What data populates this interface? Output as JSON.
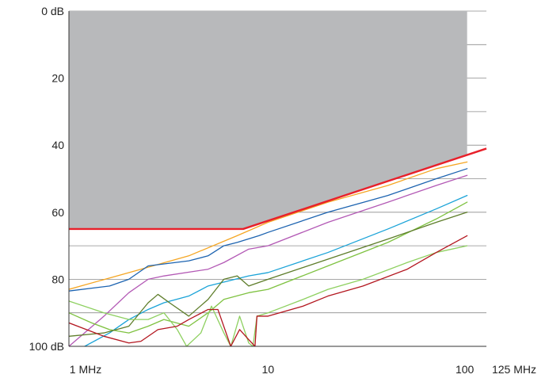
{
  "chart_data": {
    "type": "line",
    "title": "",
    "xlabel": "",
    "ylabel": "",
    "x_scale": "log",
    "xlim": [
      1,
      125
    ],
    "ylim": [
      0,
      100
    ],
    "y_inverted": true,
    "grid": "horizontal",
    "x_tick_labels": [
      {
        "value": 1,
        "label": "1 MHz"
      },
      {
        "value": 10,
        "label": "10"
      },
      {
        "value": 100,
        "label": "100"
      },
      {
        "value": 125,
        "label": "125 MHz"
      }
    ],
    "y_tick_labels": [
      {
        "value": 0,
        "label": "0 dB"
      },
      {
        "value": 20,
        "label": "20"
      },
      {
        "value": 40,
        "label": "40"
      },
      {
        "value": 60,
        "label": "60"
      },
      {
        "value": 80,
        "label": "80"
      },
      {
        "value": 100,
        "label": "100 dB"
      }
    ],
    "y_gridlines": [
      0,
      10,
      20,
      30,
      40,
      50,
      60,
      70,
      80,
      90,
      100
    ],
    "limit_region": {
      "fill_color": "#b8b9bb",
      "x_range": [
        1,
        100
      ],
      "bottom_boundary": [
        [
          1,
          65
        ],
        [
          7.5,
          65
        ],
        [
          100,
          43
        ]
      ]
    },
    "limit_line": {
      "color": "#e8202a",
      "points": [
        [
          1,
          65
        ],
        [
          7.5,
          65
        ],
        [
          125,
          41
        ]
      ]
    },
    "series": [
      {
        "color": "#f5a623",
        "points": [
          [
            1,
            83
          ],
          [
            2,
            78
          ],
          [
            4,
            73
          ],
          [
            7,
            67
          ],
          [
            10,
            63
          ],
          [
            20,
            57
          ],
          [
            40,
            52
          ],
          [
            70,
            47
          ],
          [
            100,
            45
          ]
        ]
      },
      {
        "color": "#1c63b0",
        "points": [
          [
            1,
            83.5
          ],
          [
            1.6,
            82
          ],
          [
            2,
            80
          ],
          [
            2.5,
            76
          ],
          [
            4,
            74.5
          ],
          [
            5,
            73
          ],
          [
            6,
            70
          ],
          [
            7,
            69
          ],
          [
            9,
            67
          ],
          [
            10,
            66
          ],
          [
            20,
            60
          ],
          [
            40,
            55
          ],
          [
            70,
            50
          ],
          [
            100,
            47
          ]
        ]
      },
      {
        "color": "#b359b5",
        "points": [
          [
            1,
            100
          ],
          [
            1.5,
            91
          ],
          [
            2,
            84
          ],
          [
            2.5,
            80
          ],
          [
            3,
            79
          ],
          [
            5,
            77
          ],
          [
            6,
            75
          ],
          [
            8,
            71
          ],
          [
            10,
            70
          ],
          [
            20,
            63
          ],
          [
            40,
            57
          ],
          [
            70,
            52
          ],
          [
            100,
            49
          ]
        ]
      },
      {
        "color": "#1aa3d8",
        "points": [
          [
            1.2,
            100
          ],
          [
            1.6,
            96
          ],
          [
            2,
            92
          ],
          [
            2.5,
            89
          ],
          [
            3,
            87
          ],
          [
            4,
            85
          ],
          [
            5,
            82
          ],
          [
            8,
            79
          ],
          [
            10,
            78
          ],
          [
            20,
            72
          ],
          [
            40,
            65
          ],
          [
            70,
            59
          ],
          [
            100,
            55
          ]
        ]
      },
      {
        "color": "#7fc241",
        "points": [
          [
            1,
            90
          ],
          [
            1.3,
            93
          ],
          [
            1.6,
            95
          ],
          [
            2,
            96
          ],
          [
            2.5,
            94
          ],
          [
            3,
            92
          ],
          [
            4,
            94
          ],
          [
            5,
            90
          ],
          [
            6,
            86
          ],
          [
            8,
            84
          ],
          [
            10,
            83
          ],
          [
            20,
            76
          ],
          [
            40,
            69
          ],
          [
            70,
            62
          ],
          [
            100,
            57
          ]
        ]
      },
      {
        "color": "#5e7d2a",
        "points": [
          [
            1,
            97
          ],
          [
            1.5,
            96
          ],
          [
            2,
            94
          ],
          [
            2.5,
            87
          ],
          [
            2.8,
            84.5
          ],
          [
            3.2,
            87
          ],
          [
            4,
            91
          ],
          [
            5,
            86
          ],
          [
            6,
            80
          ],
          [
            7,
            79
          ],
          [
            8,
            82
          ],
          [
            10,
            80
          ],
          [
            20,
            74
          ],
          [
            40,
            68
          ],
          [
            70,
            63
          ],
          [
            100,
            60
          ]
        ]
      },
      {
        "color": "#8ed060",
        "points": [
          [
            1,
            86.5
          ],
          [
            1.5,
            90
          ],
          [
            2,
            92
          ],
          [
            2.5,
            92
          ],
          [
            3,
            90
          ],
          [
            3.5,
            95
          ],
          [
            3.9,
            100
          ],
          [
            4.6,
            96
          ],
          [
            5.2,
            88
          ],
          [
            6,
            96
          ],
          [
            6.5,
            100
          ],
          [
            7.2,
            91
          ],
          [
            8,
            99
          ],
          [
            8.4,
            100
          ],
          [
            8.8,
            91
          ],
          [
            10,
            90
          ],
          [
            15,
            86
          ],
          [
            20,
            83
          ],
          [
            30,
            80
          ],
          [
            50,
            75
          ],
          [
            70,
            72
          ],
          [
            100,
            70
          ]
        ]
      },
      {
        "color": "#b3161f",
        "points": [
          [
            1,
            93
          ],
          [
            1.5,
            97
          ],
          [
            2,
            99
          ],
          [
            2.3,
            98.5
          ],
          [
            2.8,
            95
          ],
          [
            3.5,
            94
          ],
          [
            4,
            92
          ],
          [
            5,
            89
          ],
          [
            5.6,
            89
          ],
          [
            6.5,
            100
          ],
          [
            7.2,
            95
          ],
          [
            8,
            98
          ],
          [
            8.6,
            100
          ],
          [
            8.8,
            91
          ],
          [
            10,
            91
          ],
          [
            15,
            88
          ],
          [
            20,
            85
          ],
          [
            30,
            82
          ],
          [
            50,
            77
          ],
          [
            70,
            72
          ],
          [
            100,
            67
          ]
        ]
      }
    ]
  }
}
